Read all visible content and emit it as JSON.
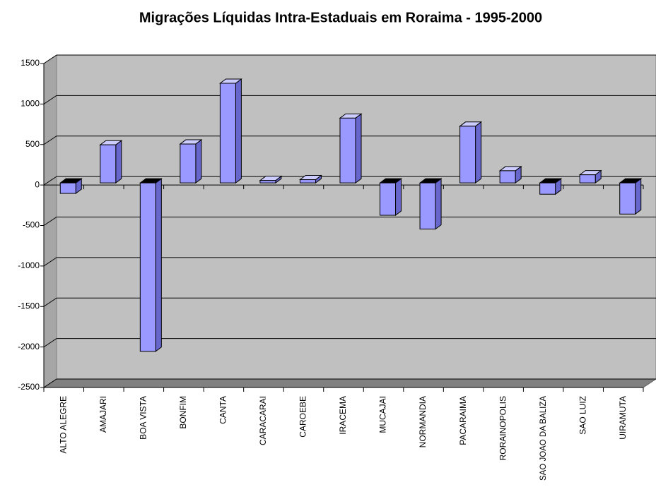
{
  "chart_data": {
    "type": "bar",
    "title": "Migrações Líquidas Intra-Estaduais em Roraima - 1995-2000",
    "categories": [
      "ALTO ALEGRE",
      "AMAJARI",
      "BOA VISTA",
      "BONFIM",
      "CANTA",
      "CARACARAI",
      "CAROEBE",
      "IRACEMA",
      "MUCAJAI",
      "NORMANDIA",
      "PACARAIMA",
      "RORAINOPOLIS",
      "SAO JOAO DA BALIZA",
      "SAO LUIZ",
      "UIRAMUTA"
    ],
    "values": [
      -130,
      470,
      -2080,
      480,
      1230,
      30,
      40,
      800,
      -400,
      -570,
      700,
      150,
      -140,
      100,
      -385
    ],
    "color": "#9999ff",
    "ylim": [
      -2500,
      1500
    ],
    "yticks": [
      -2500,
      -2000,
      -1500,
      -1000,
      -500,
      0,
      500,
      1000,
      1500
    ],
    "grid": true
  }
}
